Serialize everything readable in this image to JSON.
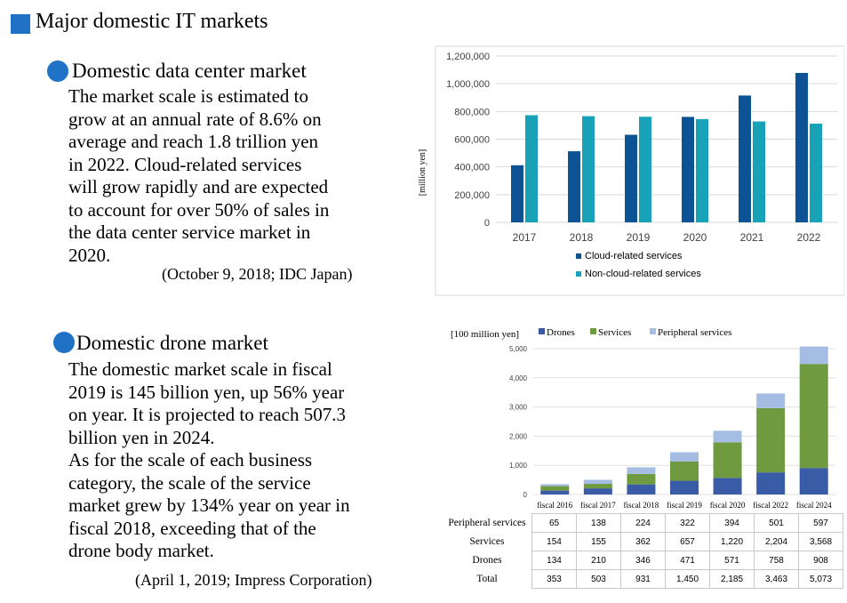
{
  "page": {
    "title": "Major domestic IT markets"
  },
  "section1": {
    "title": "Domestic data center market",
    "lines": [
      "The market scale is estimated to",
      "grow at an annual rate of 8.6% on",
      "average and reach 1.8 trillion yen",
      "in 2022. Cloud-related services",
      "will grow rapidly and are expected",
      "to account for over 50% of sales in",
      "the data center service market in",
      "2020."
    ],
    "source": "(October 9, 2018; IDC Japan)"
  },
  "section2": {
    "title": "Domestic drone market",
    "lines": [
      "The domestic market scale in fiscal",
      "2019 is 145 billion yen, up 56% year",
      "on year. It is projected to reach 507.3",
      "billion yen in 2024.",
      "As for the scale of each business",
      "category, the scale of the service",
      "market grew by 134% year on year in",
      "fiscal 2018, exceeding that of the",
      "drone body market."
    ],
    "source": "(April 1, 2019; Impress Corporation)"
  },
  "chart_data": [
    {
      "type": "bar",
      "title": "",
      "ylabel": "[million yen]",
      "xlabel": "",
      "categories": [
        "2017",
        "2018",
        "2019",
        "2020",
        "2021",
        "2022"
      ],
      "series": [
        {
          "name": "Cloud-related services",
          "color": "#0b5394",
          "values": [
            412000,
            513000,
            632000,
            761000,
            915000,
            1078000
          ]
        },
        {
          "name": "Non-cloud-related services",
          "color": "#17a2b8",
          "values": [
            773000,
            766000,
            762000,
            745000,
            728000,
            712000
          ]
        }
      ],
      "ylim": [
        0,
        1200000
      ],
      "yticks": [
        0,
        200000,
        400000,
        600000,
        800000,
        1000000,
        1200000
      ],
      "ytick_labels": [
        "0",
        "200,000",
        "400,000",
        "600,000",
        "800,000",
        "1,000,000",
        "1,200,000"
      ],
      "grid": true,
      "legend": "bottom"
    },
    {
      "type": "bar",
      "stacked": true,
      "title": "",
      "ylabel": "[100 million yen]",
      "xlabel": "",
      "categories": [
        "fiscal  2016",
        "fiscal  2017",
        "fiscal  2018",
        "fiscal  2019",
        "fiscal  2020",
        "fiscal  2022",
        "fiscal  2024"
      ],
      "series": [
        {
          "name": "Drones",
          "color": "#3a5ba5",
          "values": [
            134,
            210,
            346,
            471,
            571,
            758,
            908
          ]
        },
        {
          "name": "Services",
          "color": "#6f9a40",
          "values": [
            154,
            155,
            362,
            657,
            1220,
            2204,
            3568
          ]
        },
        {
          "name": "Peripheral services",
          "color": "#a6bde3",
          "values": [
            65,
            138,
            224,
            322,
            394,
            501,
            597
          ]
        }
      ],
      "ylim": [
        0,
        5000
      ],
      "yticks": [
        0,
        1000,
        2000,
        3000,
        4000,
        5000
      ],
      "ytick_labels": [
        "0",
        "1,000",
        "2,000",
        "3,000",
        "4,000",
        "5,000"
      ],
      "grid": true,
      "legend": "top",
      "table": {
        "rows": [
          {
            "label": "Peripheral services",
            "values": [
              "65",
              "138",
              "224",
              "322",
              "394",
              "501",
              "597"
            ]
          },
          {
            "label": "Services",
            "values": [
              "154",
              "155",
              "362",
              "657",
              "1,220",
              "2,204",
              "3,568"
            ]
          },
          {
            "label": "Drones",
            "values": [
              "134",
              "210",
              "346",
              "471",
              "571",
              "758",
              "908"
            ]
          },
          {
            "label": "Total",
            "values": [
              "353",
              "503",
              "931",
              "1,450",
              "2,185",
              "3,463",
              "5,073"
            ]
          }
        ]
      }
    }
  ]
}
